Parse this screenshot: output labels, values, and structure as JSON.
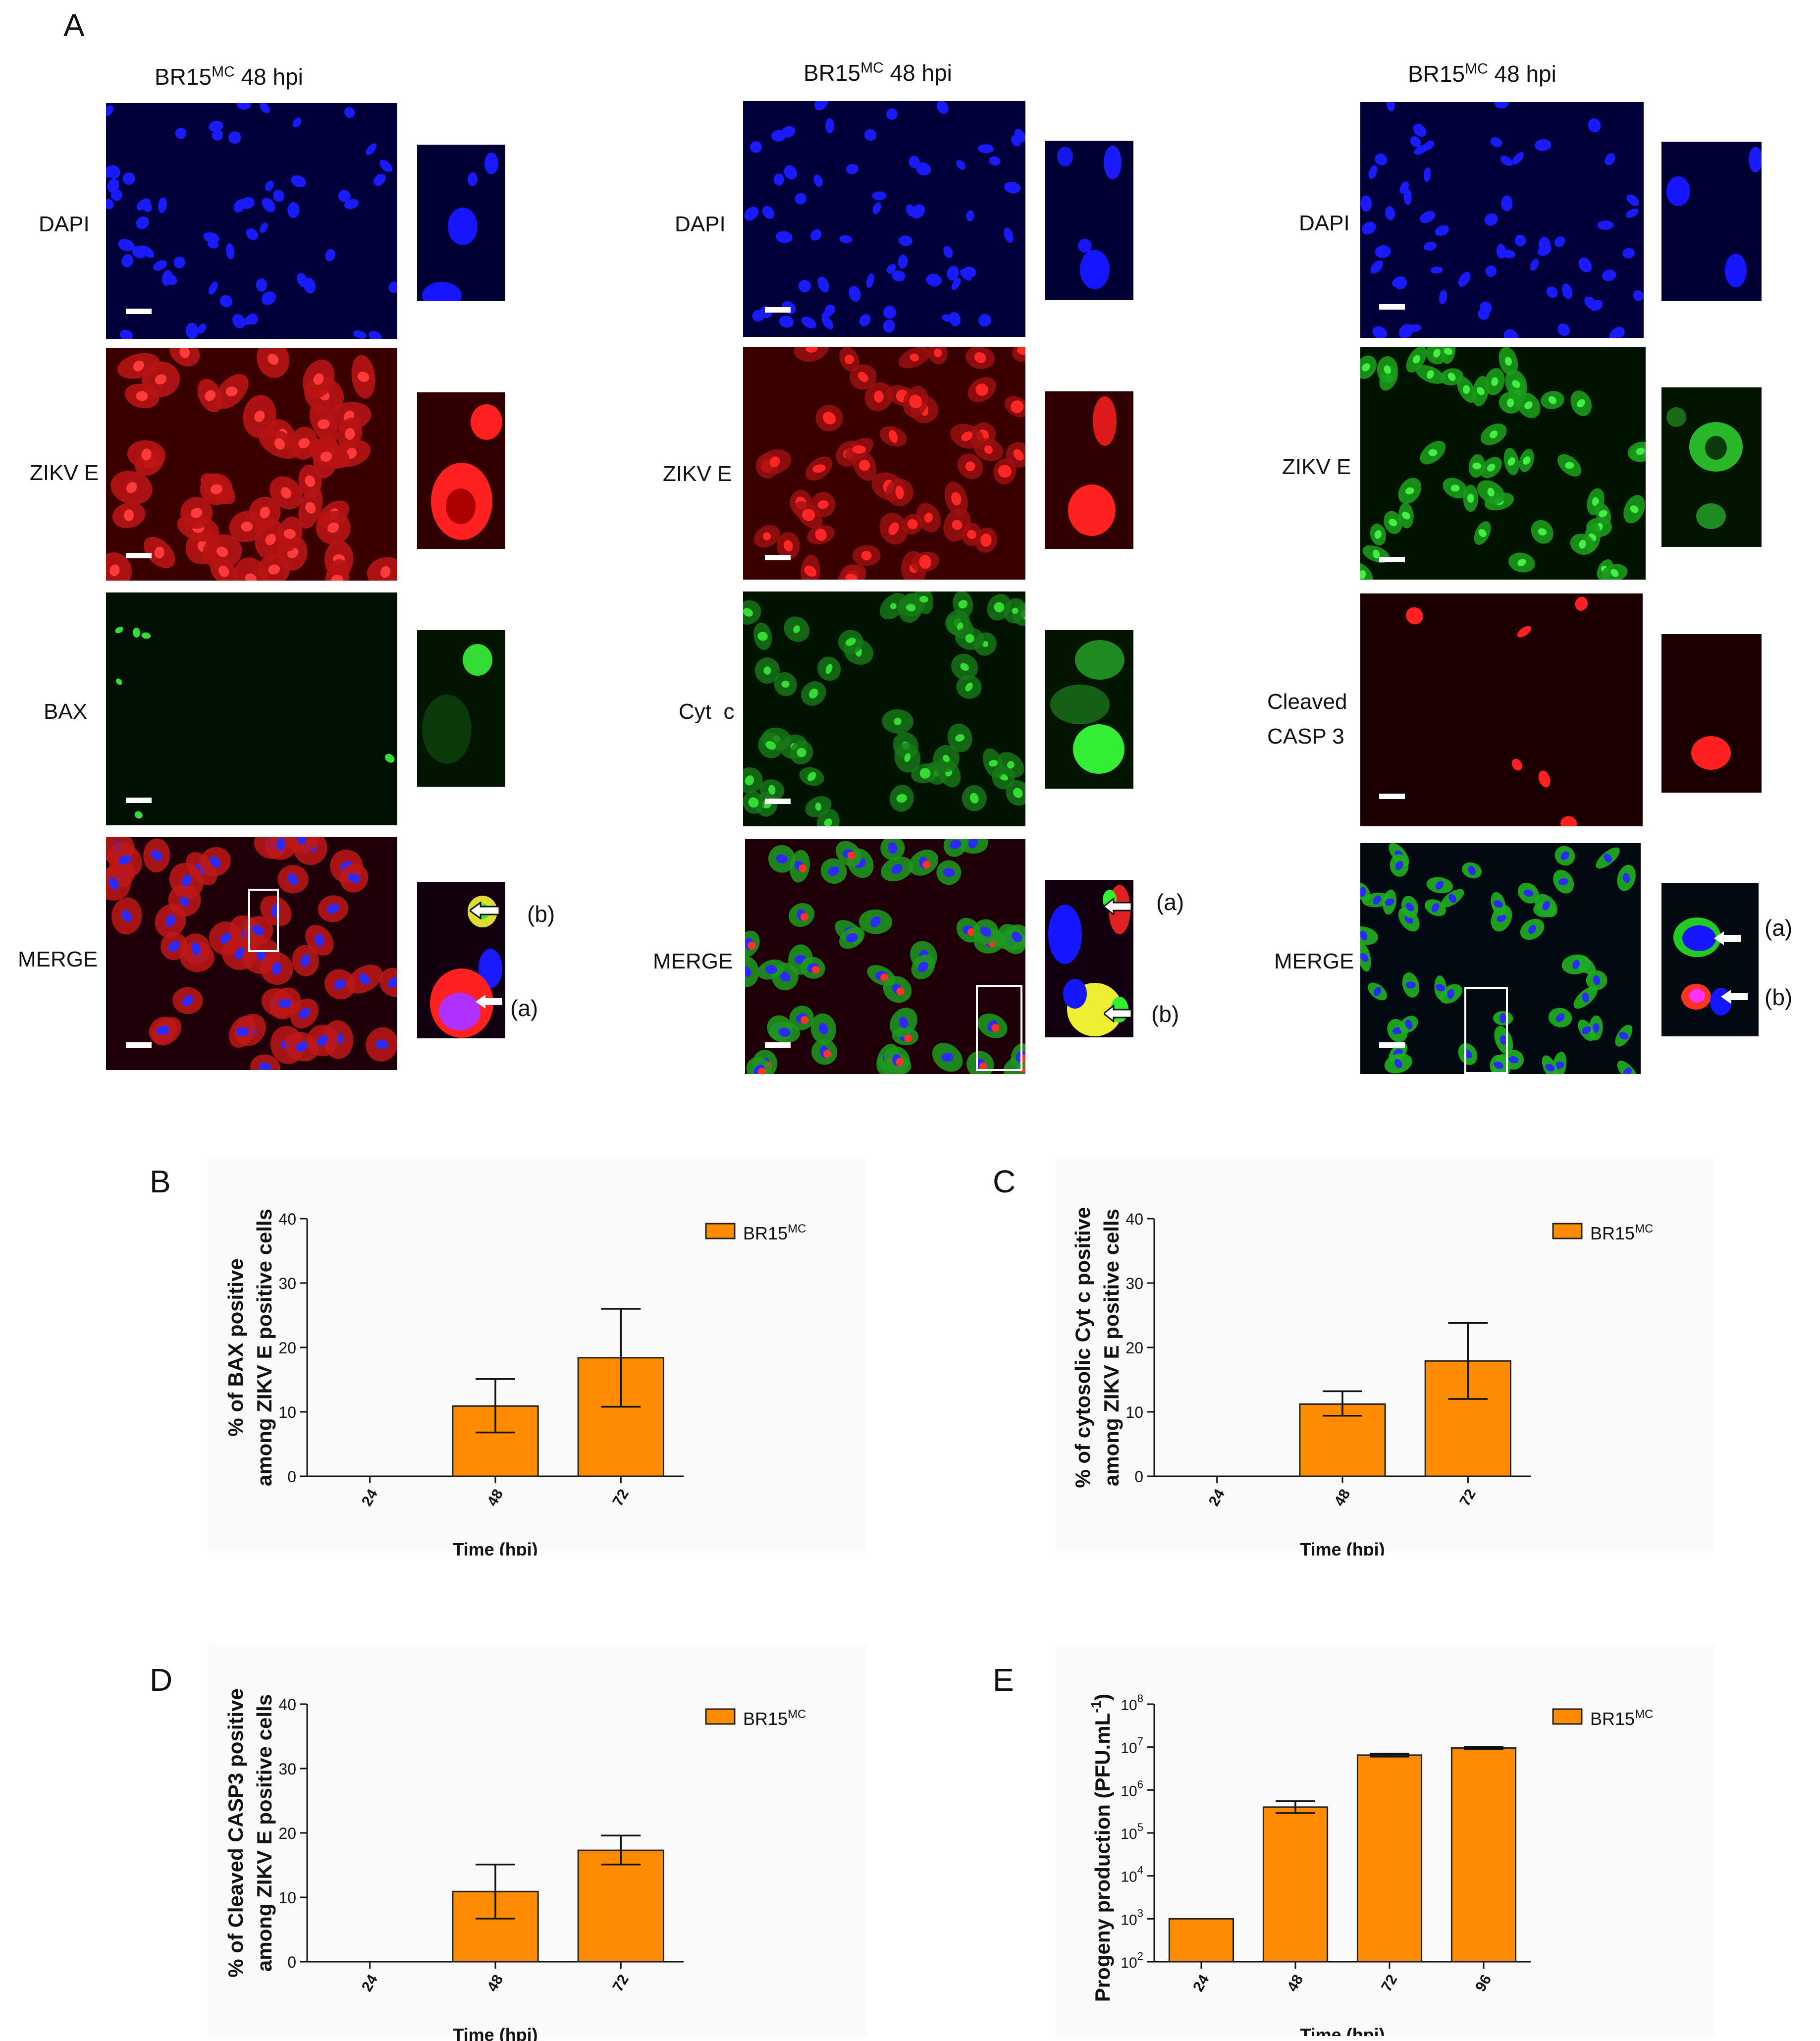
{
  "figure": {
    "panel_A_label": "A",
    "columns": [
      {
        "title_main": "BR15",
        "title_sup": "MC",
        "title_rest": "48 hpi",
        "rows": [
          "DAPI",
          "ZIKV E",
          "BAX",
          "MERGE"
        ],
        "merge_arrows": [
          "(b)",
          "(a)"
        ]
      },
      {
        "title_main": "BR15",
        "title_sup": "MC",
        "title_rest": "48 hpi",
        "rows": [
          "DAPI",
          "ZIKV E",
          "Cyt  c",
          "MERGE"
        ],
        "merge_arrows": [
          "(a)",
          "(b)"
        ]
      },
      {
        "title_main": "BR15",
        "title_sup": "MC",
        "title_rest": "48 hpi",
        "rows": [
          "DAPI",
          "ZIKV E",
          "Cleaved",
          "MERGE"
        ],
        "row3_line2": "CASP 3",
        "merge_arrows": [
          "(a)",
          "(b)"
        ]
      }
    ]
  },
  "colors": {
    "dapi": "#1a1aff",
    "red": "#ff2020",
    "green": "#22dd22",
    "bar_fill": "#ff8c00",
    "bar_stroke": "#222222"
  },
  "chart_data": [
    {
      "panel": "B",
      "type": "bar",
      "categories": [
        "24",
        "48",
        "72"
      ],
      "series": [
        {
          "name": "BR15",
          "name_sup": "MC",
          "values": [
            0,
            10.9,
            18.4
          ],
          "err_low": [
            0,
            6.8,
            10.8
          ],
          "err_high": [
            0,
            15.1,
            26.0
          ]
        }
      ],
      "ylabel_line1": "% of BAX positive",
      "ylabel_line2": "among ZIKV E positive cells",
      "xlabel": "Time (hpi)",
      "ylim": [
        0,
        40
      ],
      "yticks": [
        "0",
        "10",
        "20",
        "30",
        "40"
      ],
      "scale": "linear"
    },
    {
      "panel": "C",
      "type": "bar",
      "categories": [
        "24",
        "48",
        "72"
      ],
      "series": [
        {
          "name": "BR15",
          "name_sup": "MC",
          "values": [
            0,
            11.2,
            17.9
          ],
          "err_low": [
            0,
            9.4,
            12.0
          ],
          "err_high": [
            0,
            13.2,
            23.8
          ]
        }
      ],
      "ylabel_line1": "% of cytosolic Cyt c positive",
      "ylabel_line2": "among ZIKV E positive cells",
      "xlabel": "Time (hpi)",
      "ylim": [
        0,
        40
      ],
      "yticks": [
        "0",
        "10",
        "20",
        "30",
        "40"
      ],
      "scale": "linear"
    },
    {
      "panel": "D",
      "type": "bar",
      "categories": [
        "24",
        "48",
        "72"
      ],
      "series": [
        {
          "name": "BR15",
          "name_sup": "MC",
          "values": [
            0,
            10.9,
            17.3
          ],
          "err_low": [
            0,
            6.7,
            15.1
          ],
          "err_high": [
            0,
            15.1,
            19.6
          ]
        }
      ],
      "ylabel_line1": "% of Cleaved CASP3 positive",
      "ylabel_line2": "among ZIKV E positive cells",
      "xlabel": "Time (hpi)",
      "ylim": [
        0,
        40
      ],
      "yticks": [
        "0",
        "10",
        "20",
        "30",
        "40"
      ],
      "scale": "linear"
    },
    {
      "panel": "E",
      "type": "bar",
      "categories": [
        "24",
        "48",
        "72",
        "96"
      ],
      "series": [
        {
          "name": "BR15",
          "name_sup": "MC",
          "values": [
            1000,
            400000,
            6500000,
            9500000
          ],
          "err_low": [
            1000,
            290000,
            6000000,
            9000000
          ],
          "err_high": [
            1000,
            550000,
            7000000,
            10000000
          ]
        }
      ],
      "ylabel": "Progeny production (PFU.mL",
      "ylabel_sup": "-1",
      "ylabel_end": ")",
      "xlabel": "Time (hpi)",
      "ylim": [
        100,
        100000000
      ],
      "yticks": [
        "2",
        "3",
        "4",
        "5",
        "6",
        "7",
        "8"
      ],
      "ytick_base": "10",
      "scale": "log"
    }
  ]
}
